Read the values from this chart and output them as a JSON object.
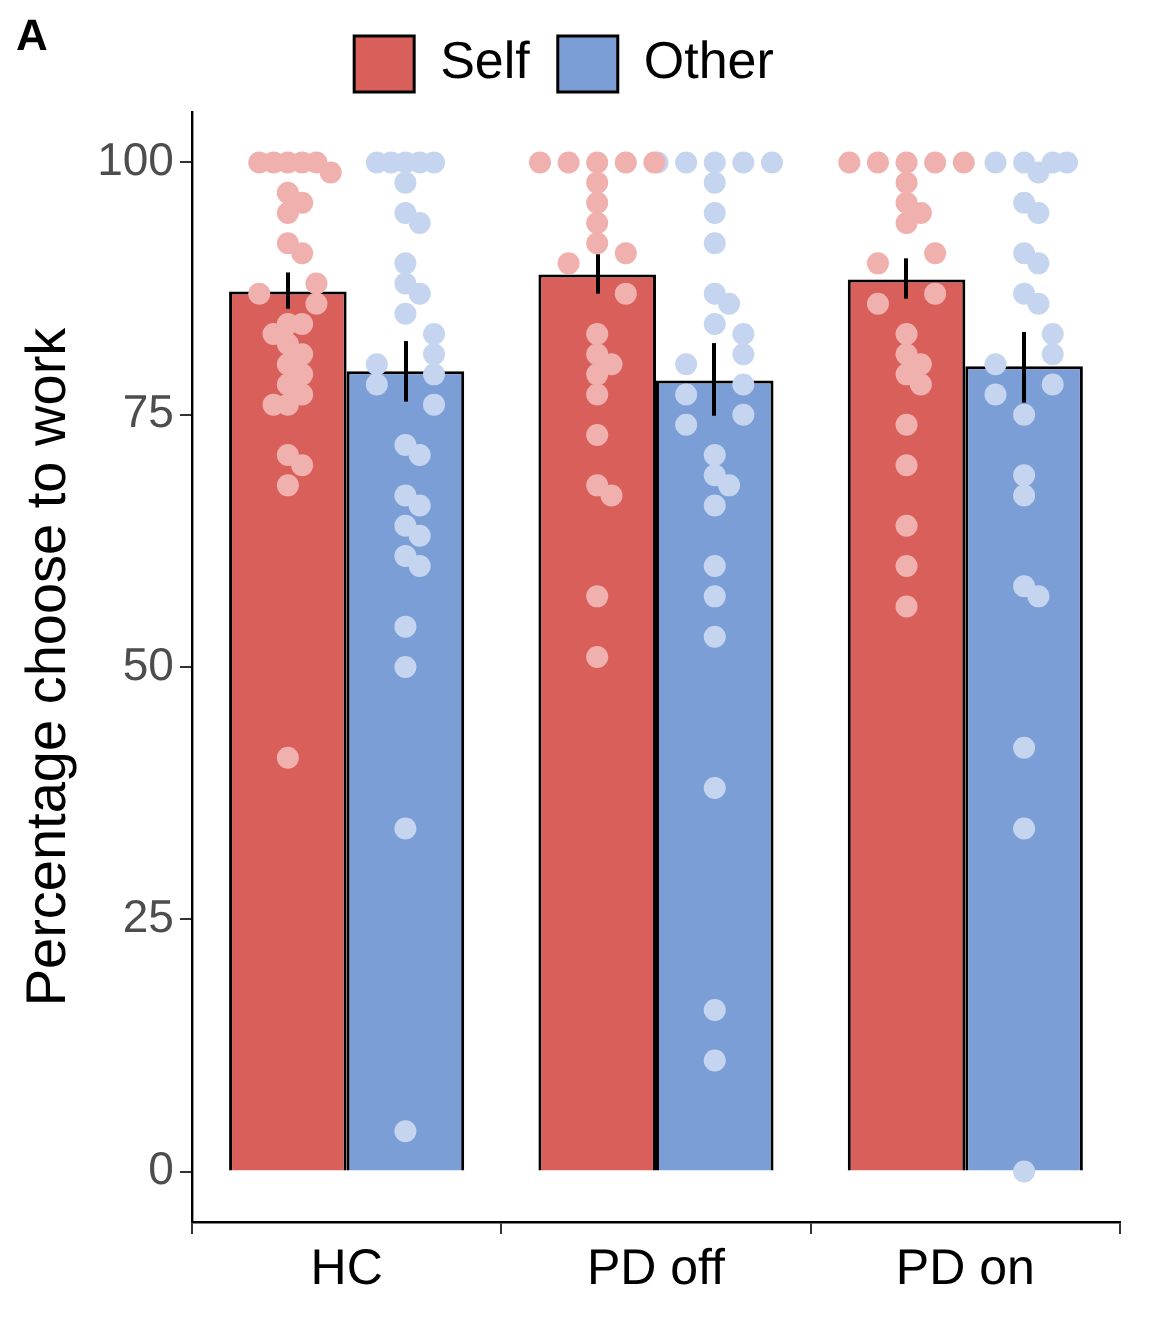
{
  "chart_data": {
    "type": "bar",
    "annotations": [
      "A"
    ],
    "ylabel": "Percentage choose to work",
    "categories": [
      "HC",
      "PD off",
      "PD on"
    ],
    "series": [
      {
        "name": "Self",
        "color": "#d95f5a",
        "values": [
          87.2,
          88.9,
          88.4
        ],
        "errors": [
          [
            85.5,
            89.1
          ],
          [
            87,
            90.9
          ],
          [
            86.5,
            90.5
          ]
        ]
      },
      {
        "name": "Other",
        "color": "#7b9ed6",
        "values": [
          79.3,
          78.4,
          79.8
        ],
        "errors": [
          [
            76.3,
            82.3
          ],
          [
            74.9,
            82.1
          ],
          [
            76.2,
            83.2
          ]
        ]
      },
      {
        "type": "scatter",
        "color": "#efb0ae",
        "x": [
          "HC",
          "HC",
          "HC",
          "HC",
          "HC",
          "HC",
          "HC",
          "HC",
          "HC",
          "HC",
          "HC",
          "HC",
          "HC",
          "HC",
          "HC",
          "HC",
          "HC",
          "HC",
          "HC",
          "HC",
          "HC",
          "HC",
          "HC",
          "HC",
          "HC",
          "HC",
          "HC",
          "HC",
          "HC",
          "PD off",
          "PD off",
          "PD off",
          "PD off",
          "PD off",
          "PD off",
          "PD off",
          "PD off",
          "PD off",
          "PD off",
          "PD off",
          "PD off",
          "PD off",
          "PD off",
          "PD off",
          "PD off",
          "PD off",
          "PD off",
          "PD off",
          "PD off",
          "PD off",
          "PD off",
          "PD on",
          "PD on",
          "PD on",
          "PD on",
          "PD on",
          "PD on",
          "PD on",
          "PD on",
          "PD on",
          "PD on",
          "PD on",
          "PD on",
          "PD on",
          "PD on",
          "PD on",
          "PD on",
          "PD on",
          "PD on",
          "PD on",
          "PD on",
          "PD on",
          "PD on",
          "PD on"
        ],
        "values": [
          100,
          100,
          100,
          100,
          100,
          99,
          97,
          96,
          95,
          92,
          91,
          88,
          87,
          86,
          84,
          84,
          83,
          82,
          81,
          80,
          79,
          78,
          77,
          76,
          76,
          71,
          70,
          68,
          41,
          100,
          100,
          100,
          100,
          100,
          98,
          96,
          94,
          92,
          91,
          90,
          87,
          83,
          81,
          80,
          79,
          77,
          73,
          68,
          67,
          57,
          51,
          100,
          100,
          100,
          100,
          100,
          98,
          96,
          95,
          94,
          91,
          90,
          87,
          86,
          83,
          81,
          80,
          79,
          78,
          74,
          70,
          64,
          60,
          56
        ]
      },
      {
        "type": "scatter",
        "color": "#c6d5ef",
        "x": [
          "HC",
          "HC",
          "HC",
          "HC",
          "HC",
          "HC",
          "HC",
          "HC",
          "HC",
          "HC",
          "HC",
          "HC",
          "HC",
          "HC",
          "HC",
          "HC",
          "HC",
          "HC",
          "HC",
          "HC",
          "HC",
          "HC",
          "HC",
          "HC",
          "HC",
          "HC",
          "HC",
          "HC",
          "HC",
          "HC",
          "PD off",
          "PD off",
          "PD off",
          "PD off",
          "PD off",
          "PD off",
          "PD off",
          "PD off",
          "PD off",
          "PD off",
          "PD off",
          "PD off",
          "PD off",
          "PD off",
          "PD off",
          "PD off",
          "PD off",
          "PD off",
          "PD off",
          "PD off",
          "PD off",
          "PD off",
          "PD off",
          "PD off",
          "PD off",
          "PD off",
          "PD off",
          "PD off",
          "PD on",
          "PD on",
          "PD on",
          "PD on",
          "PD on",
          "PD on",
          "PD on",
          "PD on",
          "PD on",
          "PD on",
          "PD on",
          "PD on",
          "PD on",
          "PD on",
          "PD on",
          "PD on",
          "PD on",
          "PD on",
          "PD on",
          "PD on",
          "PD on",
          "PD on",
          "PD on",
          "PD on"
        ],
        "values": [
          100,
          100,
          100,
          100,
          100,
          98,
          95,
          94,
          90,
          88,
          87,
          85,
          83,
          81,
          80,
          79,
          78,
          76,
          72,
          71,
          67,
          66,
          64,
          63,
          61,
          60,
          54,
          50,
          34,
          4,
          100,
          100,
          100,
          100,
          100,
          98,
          95,
          92,
          87,
          86,
          84,
          83,
          81,
          80,
          78,
          77,
          75,
          74,
          71,
          69,
          68,
          66,
          60,
          57,
          53,
          38,
          16,
          11,
          100,
          100,
          100,
          100,
          99,
          96,
          95,
          91,
          90,
          87,
          86,
          83,
          81,
          80,
          78,
          77,
          75,
          69,
          67,
          58,
          57,
          42,
          34,
          0
        ]
      }
    ],
    "ylim": [
      -5,
      105
    ],
    "yticks": [
      0,
      25,
      50,
      75,
      100
    ],
    "grid": false,
    "legend": "top",
    "marker": "circle"
  }
}
